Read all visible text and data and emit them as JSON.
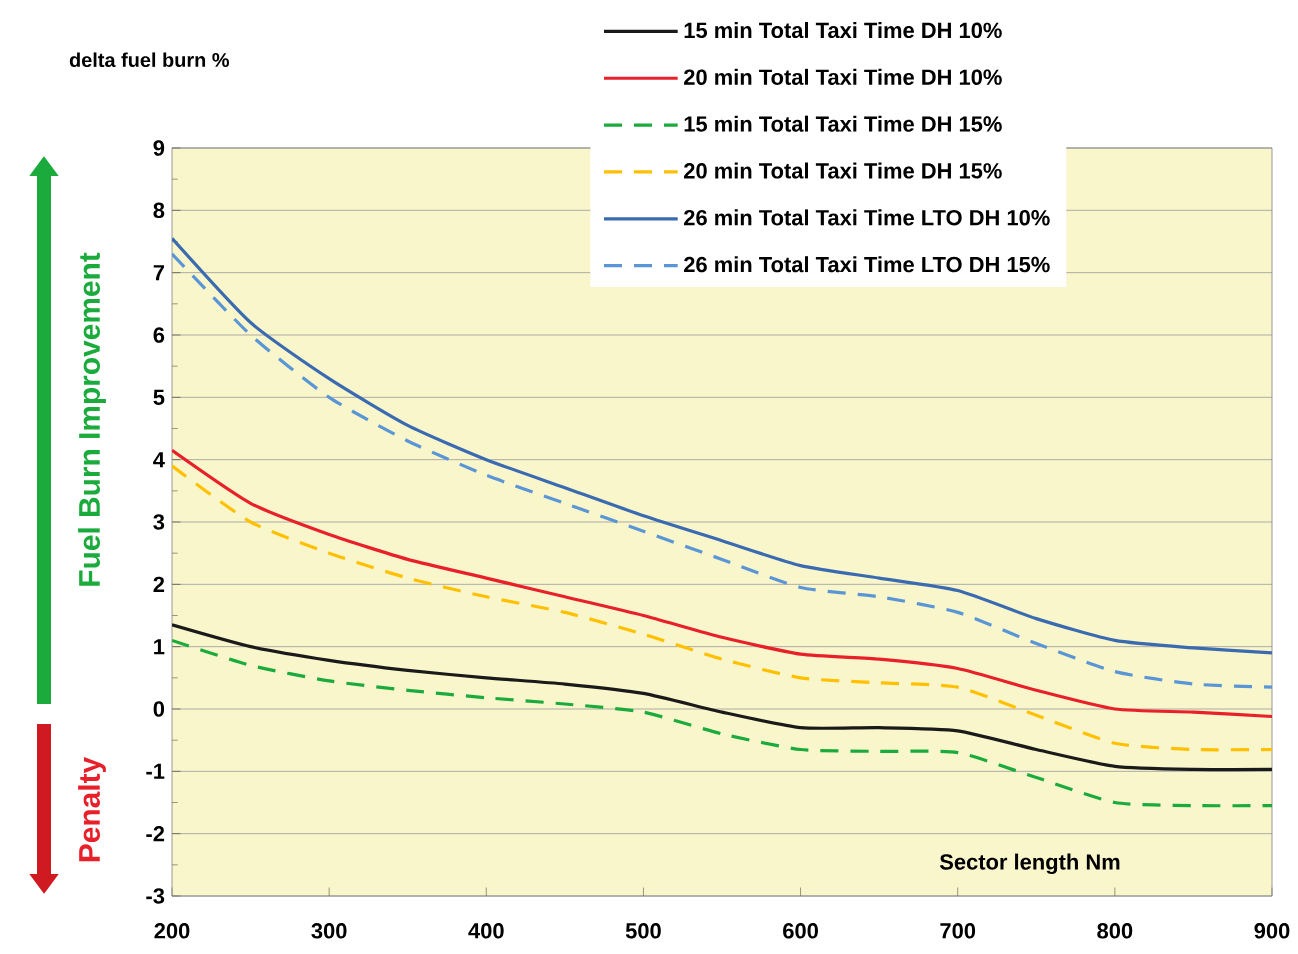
{
  "chart_data": {
    "type": "line",
    "ylabel": "delta fuel burn %",
    "xlabel": "Sector length Nm",
    "x": [
      200,
      250,
      300,
      350,
      400,
      450,
      500,
      550,
      600,
      650,
      700,
      750,
      800,
      850,
      900
    ],
    "series": [
      {
        "name": "15 min Total Taxi Time DH 10%",
        "color": "#1a1a1a",
        "line_style": "solid",
        "values": [
          1.35,
          1.0,
          0.78,
          0.62,
          0.5,
          0.4,
          0.25,
          -0.05,
          -0.3,
          -0.3,
          -0.35,
          -0.65,
          -0.92,
          -0.97,
          -0.97
        ]
      },
      {
        "name": "20 min Total Taxi Time DH 10%",
        "color": "#e8202a",
        "line_style": "solid",
        "values": [
          4.15,
          3.3,
          2.8,
          2.4,
          2.1,
          1.8,
          1.5,
          1.15,
          0.88,
          0.8,
          0.65,
          0.3,
          0.0,
          -0.05,
          -0.12
        ]
      },
      {
        "name": "15 min Total Taxi Time DH 15%",
        "color": "#1aab3c",
        "line_style": "dashed",
        "values": [
          1.1,
          0.7,
          0.45,
          0.3,
          0.18,
          0.08,
          -0.05,
          -0.4,
          -0.65,
          -0.68,
          -0.7,
          -1.1,
          -1.5,
          -1.55,
          -1.55
        ]
      },
      {
        "name": "20 min Total Taxi Time DH 15%",
        "color": "#ffc000",
        "line_style": "dashed",
        "values": [
          3.9,
          3.0,
          2.5,
          2.1,
          1.8,
          1.55,
          1.2,
          0.8,
          0.5,
          0.42,
          0.35,
          -0.1,
          -0.55,
          -0.65,
          -0.65
        ]
      },
      {
        "name": "26 min Total Taxi Time LTO DH 10%",
        "color": "#3a6ab0",
        "line_style": "solid",
        "values": [
          7.55,
          6.2,
          5.3,
          4.55,
          4.0,
          3.55,
          3.1,
          2.7,
          2.3,
          2.1,
          1.9,
          1.45,
          1.1,
          0.98,
          0.9
        ]
      },
      {
        "name": "26 min Total Taxi Time LTO DH 15%",
        "color": "#5a96d6",
        "line_style": "dashed",
        "values": [
          7.3,
          6.0,
          5.0,
          4.3,
          3.75,
          3.3,
          2.85,
          2.4,
          1.95,
          1.8,
          1.55,
          1.05,
          0.6,
          0.4,
          0.35
        ]
      }
    ],
    "xlim": [
      200,
      900
    ],
    "xticks": [
      200,
      300,
      400,
      500,
      600,
      700,
      800,
      900
    ],
    "ylim": [
      -3,
      9
    ],
    "yticks": [
      -3,
      -2,
      -1,
      0,
      1,
      2,
      3,
      4,
      5,
      6,
      7,
      8,
      9
    ],
    "grid": "y",
    "legend": "top right",
    "annotations": [
      "Fuel  Burn Improvement",
      "Penalty"
    ]
  }
}
